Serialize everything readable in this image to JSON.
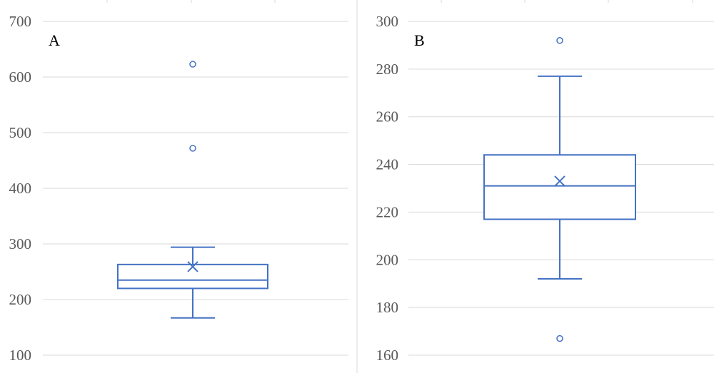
{
  "chart_data": [
    {
      "type": "box",
      "panel_label": "A",
      "ylim": [
        100,
        700
      ],
      "yticks": [
        100,
        200,
        300,
        400,
        500,
        600,
        700
      ],
      "grid": true,
      "box": {
        "lower_whisker": 167,
        "q1": 220,
        "median": 235,
        "q3": 263,
        "upper_whisker": 294,
        "mean": 259,
        "outliers": [
          472,
          623
        ]
      },
      "color": "#4472C4"
    },
    {
      "type": "box",
      "panel_label": "B",
      "ylim": [
        160,
        300
      ],
      "yticks": [
        160,
        180,
        200,
        220,
        240,
        260,
        280,
        300
      ],
      "grid": true,
      "box": {
        "lower_whisker": 192,
        "q1": 217,
        "median": 231,
        "q3": 244,
        "upper_whisker": 277,
        "mean": 233,
        "outliers": [
          167,
          292
        ]
      },
      "color": "#4472C4"
    }
  ]
}
